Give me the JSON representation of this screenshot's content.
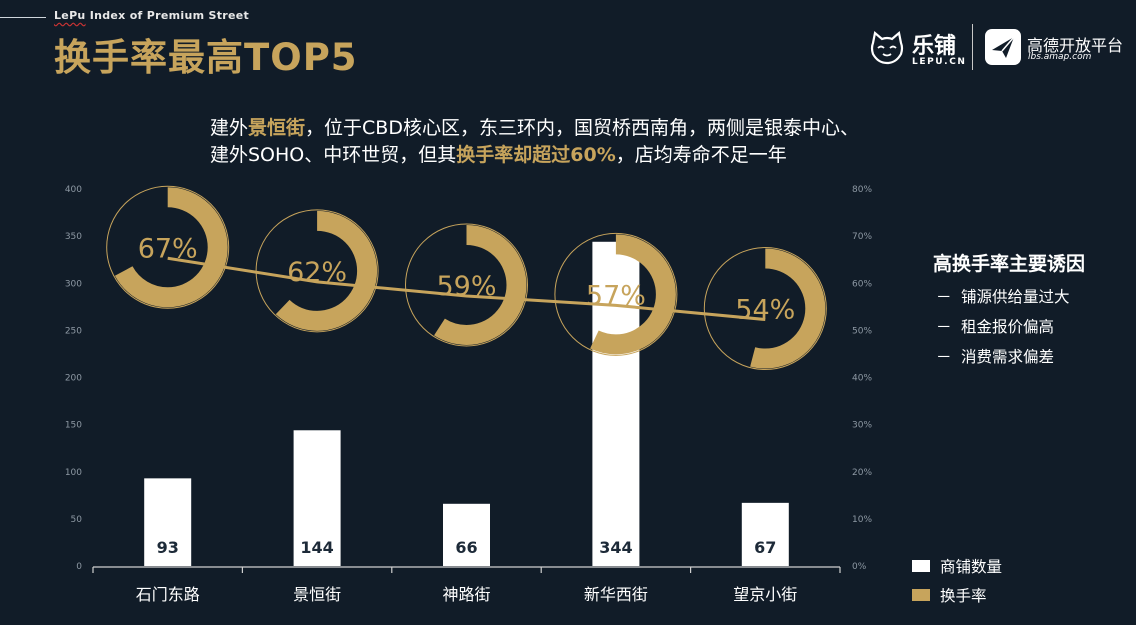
{
  "header": {
    "brand_prefix": "LePu",
    "brand_rest": " Index of Premium Street",
    "title": "换手率最高TOP5"
  },
  "logos": {
    "lepu_cn": "乐铺",
    "lepu_en": "LEPU.CN",
    "amap_cn": "高德开放平台",
    "amap_en": "lbs.amap.com"
  },
  "headline": {
    "p1": "建外",
    "hl1": "景恒街",
    "p2": "，位于CBD核心区，东三环内，国贸桥西南角，两侧是银泰中心、",
    "p3": "建外SOHO、中环世贸，但其",
    "hl2": "换手率却超过60%",
    "p4": "，店均寿命不足一年"
  },
  "side_panel": {
    "title": "高换手率主要诱因",
    "dash": "－",
    "items": [
      "铺源供给量过大",
      "租金报价偏高",
      "消费需求偏差"
    ]
  },
  "colors": {
    "background": "#111c28",
    "bar": "#ffffff",
    "gold": "#c7a45c",
    "axis": "#d0d0d0"
  },
  "chart_data": {
    "type": "bar",
    "categories": [
      "石门东路",
      "景恒街",
      "神路街",
      "新华西街",
      "望京小街"
    ],
    "series": [
      {
        "name": "商铺数量",
        "type": "bar",
        "axis": "left",
        "values": [
          93,
          144,
          66,
          344,
          67
        ],
        "labels": [
          "93",
          "144",
          "66",
          "344",
          "67"
        ]
      },
      {
        "name": "换手率",
        "type": "line+donut",
        "axis": "right",
        "values": [
          67,
          62,
          59,
          57,
          54
        ],
        "labels": [
          "67%",
          "62%",
          "59%",
          "57%",
          "54%"
        ]
      }
    ],
    "y_left": {
      "min": 0,
      "max": 400,
      "ticks": [
        "0",
        "50",
        "100",
        "150",
        "200",
        "250",
        "300",
        "350",
        "400"
      ]
    },
    "y_right": {
      "min": 0,
      "max": 80,
      "ticks": [
        "0%",
        "10%",
        "20%",
        "30%",
        "40%",
        "50%",
        "60%",
        "70%",
        "80%"
      ]
    },
    "grid": false,
    "legend_position": "bottom-right"
  }
}
